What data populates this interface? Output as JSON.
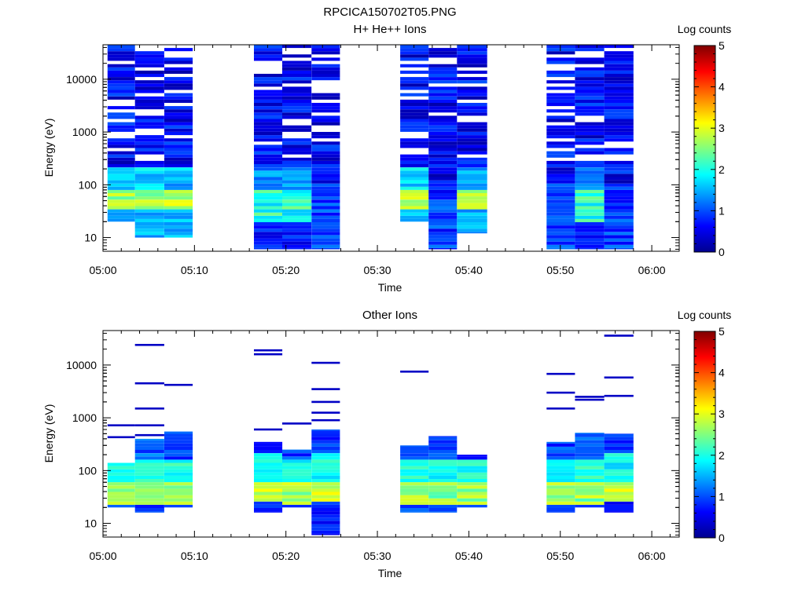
{
  "figure_title": "RPCICA150702T05.PNG",
  "chart_data": [
    {
      "type": "heatmap",
      "title": "H+ He++ Ions",
      "xlabel": "Time",
      "ylabel": "Energy (eV)",
      "x_range": [
        "05:00",
        "06:03"
      ],
      "y_range": [
        5.5,
        45000
      ],
      "y_scale": "log",
      "x_tick_labels": [
        "05:00",
        "05:10",
        "05:20",
        "05:30",
        "05:40",
        "05:50",
        "06:00"
      ],
      "y_tick_labels": [
        "10",
        "100",
        "1000",
        "10000"
      ],
      "colorbar": {
        "label": "Log counts",
        "range": [
          0,
          5
        ],
        "tick_labels": [
          "0",
          "1",
          "2",
          "3",
          "4",
          "5"
        ]
      },
      "blocks": [
        {
          "start": "05:00.5",
          "end": "05:03.5",
          "e_max": 45000,
          "e_min": 20,
          "profile": "hot"
        },
        {
          "start": "05:03.5",
          "end": "05:06.7",
          "e_max": 45000,
          "e_min": 10,
          "profile": "hot"
        },
        {
          "start": "05:06.7",
          "end": "05:09.8",
          "e_max": 45000,
          "e_min": 10,
          "profile": "hot"
        },
        {
          "start": "05:16.5",
          "end": "05:19.6",
          "e_max": 45000,
          "e_min": 6,
          "profile": "warm"
        },
        {
          "start": "05:19.6",
          "end": "05:22.8",
          "e_max": 45000,
          "e_min": 6,
          "profile": "warm"
        },
        {
          "start": "05:22.8",
          "end": "05:25.9",
          "e_max": 45000,
          "e_min": 6,
          "profile": "cool"
        },
        {
          "start": "05:32.5",
          "end": "05:35.6",
          "e_max": 45000,
          "e_min": 20,
          "profile": "hot"
        },
        {
          "start": "05:35.6",
          "end": "05:38.7",
          "e_max": 45000,
          "e_min": 6,
          "profile": "cool"
        },
        {
          "start": "05:38.7",
          "end": "05:42.0",
          "e_max": 45000,
          "e_min": 12,
          "profile": "hot"
        },
        {
          "start": "05:48.5",
          "end": "05:51.6",
          "e_max": 45000,
          "e_min": 6,
          "profile": "cool"
        },
        {
          "start": "05:51.6",
          "end": "05:54.8",
          "e_max": 45000,
          "e_min": 6,
          "profile": "warm"
        },
        {
          "start": "05:54.8",
          "end": "05:58.0",
          "e_max": 45000,
          "e_min": 6,
          "profile": "cool"
        }
      ]
    },
    {
      "type": "heatmap",
      "title": "Other Ions",
      "xlabel": "Time",
      "ylabel": "Energy (eV)",
      "x_range": [
        "05:00",
        "06:03"
      ],
      "y_range": [
        5.5,
        45000
      ],
      "y_scale": "log",
      "x_tick_labels": [
        "05:00",
        "05:10",
        "05:20",
        "05:30",
        "05:40",
        "05:50",
        "06:00"
      ],
      "y_tick_labels": [
        "10",
        "100",
        "1000",
        "10000"
      ],
      "colorbar": {
        "label": "Log counts",
        "range": [
          0,
          5
        ],
        "tick_labels": [
          "0",
          "1",
          "2",
          "3",
          "4",
          "5"
        ]
      },
      "blocks": [
        {
          "start": "05:00.5",
          "end": "05:03.5",
          "e_max": 140,
          "e_min": 20,
          "profile": "other",
          "extra_lines": [
            720,
            430
          ]
        },
        {
          "start": "05:03.5",
          "end": "05:06.7",
          "e_max": 400,
          "e_min": 16,
          "profile": "other",
          "extra_lines": [
            24000,
            4500,
            1500,
            720,
            470
          ]
        },
        {
          "start": "05:06.7",
          "end": "05:09.8",
          "e_max": 550,
          "e_min": 20,
          "profile": "other",
          "extra_lines": [
            4200
          ]
        },
        {
          "start": "05:16.5",
          "end": "05:19.6",
          "e_max": 350,
          "e_min": 16,
          "profile": "other_hot",
          "extra_lines": [
            19000,
            16000,
            600
          ]
        },
        {
          "start": "05:19.6",
          "end": "05:22.8",
          "e_max": 250,
          "e_min": 20,
          "profile": "other",
          "extra_lines": [
            780
          ]
        },
        {
          "start": "05:22.8",
          "end": "05:25.9",
          "e_max": 600,
          "e_min": 6,
          "profile": "other_hot",
          "extra_lines": [
            11000,
            3500,
            2000,
            1250,
            900
          ]
        },
        {
          "start": "05:32.5",
          "end": "05:35.6",
          "e_max": 300,
          "e_min": 16,
          "profile": "other",
          "extra_lines": [
            7500
          ]
        },
        {
          "start": "05:35.6",
          "end": "05:38.7",
          "e_max": 450,
          "e_min": 16,
          "profile": "other",
          "extra_lines": []
        },
        {
          "start": "05:38.7",
          "end": "05:42.0",
          "e_max": 200,
          "e_min": 20,
          "profile": "other",
          "extra_lines": []
        },
        {
          "start": "05:48.5",
          "end": "05:51.6",
          "e_max": 350,
          "e_min": 16,
          "profile": "other",
          "extra_lines": [
            6800,
            3000,
            1500
          ]
        },
        {
          "start": "05:51.6",
          "end": "05:54.8",
          "e_max": 520,
          "e_min": 20,
          "profile": "other",
          "extra_lines": [
            2500,
            2200
          ]
        },
        {
          "start": "05:54.8",
          "end": "05:58.0",
          "e_max": 500,
          "e_min": 16,
          "profile": "other_hot",
          "extra_lines": [
            36000,
            5800,
            2600
          ]
        }
      ]
    }
  ]
}
